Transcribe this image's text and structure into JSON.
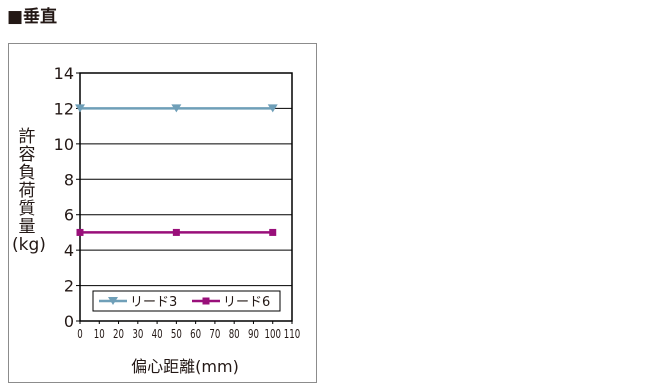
{
  "title": "■垂直",
  "chart_data": {
    "type": "line",
    "title": "",
    "xlabel": "偏心距離(mm)",
    "ylabel_chars": [
      "許",
      "容",
      "負",
      "荷",
      "質",
      "量"
    ],
    "ylabel_unit": "(kg)",
    "x_ticks": [
      "0",
      "10",
      "20",
      "30",
      "40",
      "50",
      "60",
      "70",
      "80",
      "90",
      "100",
      "110"
    ],
    "y_ticks": [
      "0",
      "2",
      "4",
      "6",
      "8",
      "10",
      "12",
      "14"
    ],
    "xlim": [
      0,
      110
    ],
    "ylim": [
      0,
      14
    ],
    "grid": "horizontal",
    "legend_position": "bottom",
    "series": [
      {
        "name": "リード3",
        "color": "#6f9fb8",
        "marker": "triangle-down",
        "x": [
          0,
          50,
          100
        ],
        "y": [
          12,
          12,
          12
        ]
      },
      {
        "name": "リード6",
        "color": "#990f7a",
        "marker": "square",
        "x": [
          0,
          50,
          100
        ],
        "y": [
          5,
          5,
          5
        ]
      }
    ]
  }
}
